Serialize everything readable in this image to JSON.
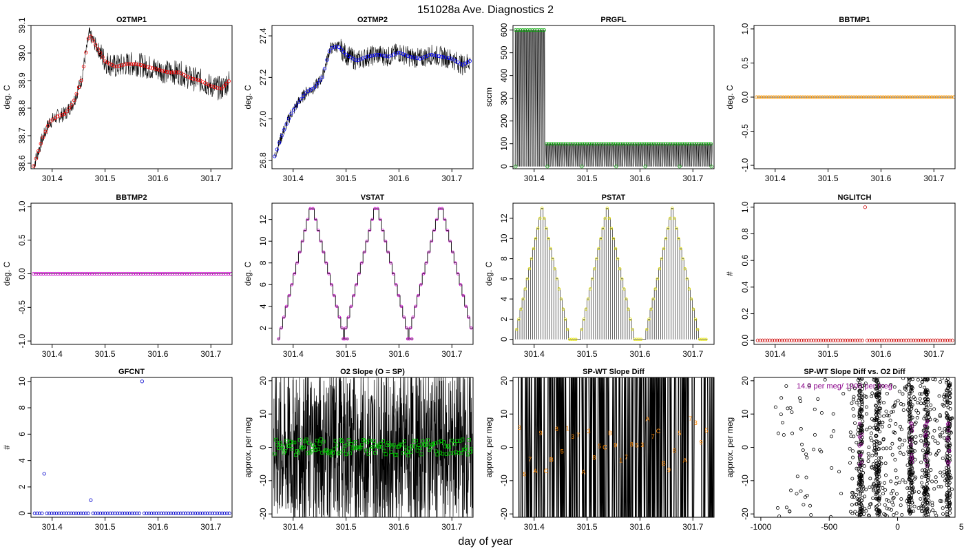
{
  "figure": {
    "title": "151028a   Ave. Diagnostics 2",
    "xlabel": "day of year"
  },
  "chart_data": [
    {
      "id": "o2tmp1",
      "type": "line",
      "title": "O2TMP1",
      "ylabel": "deg. C",
      "xlim": [
        301.36,
        301.74
      ],
      "ylim": [
        38.58,
        39.1
      ],
      "xticks": [
        "301.4",
        "301.5",
        "301.6",
        "301.7"
      ],
      "xtick_values": [
        301.4,
        301.5,
        301.6,
        301.7
      ],
      "yticks": [
        38.6,
        38.7,
        38.8,
        38.9,
        39.0,
        39.1
      ],
      "ytick_labels": [
        "38.6",
        "38.7",
        "38.8",
        "38.9",
        "39.0",
        "39.1"
      ],
      "marker_color": "#ff0000",
      "marker": "circle",
      "x": [
        301.365,
        301.38,
        301.395,
        301.41,
        301.425,
        301.44,
        301.455,
        301.47,
        301.485,
        301.5,
        301.52,
        301.54,
        301.56,
        301.58,
        301.6,
        301.62,
        301.64,
        301.66,
        301.68,
        301.7,
        301.72,
        301.735
      ],
      "y": [
        38.59,
        38.68,
        38.75,
        38.77,
        38.78,
        38.82,
        38.9,
        39.07,
        39.02,
        38.97,
        38.95,
        38.96,
        38.96,
        38.95,
        38.94,
        38.93,
        38.93,
        38.91,
        38.9,
        38.88,
        38.87,
        38.9
      ]
    },
    {
      "id": "o2tmp2",
      "type": "line",
      "title": "O2TMP2",
      "ylabel": "deg. C",
      "xlim": [
        301.36,
        301.74
      ],
      "ylim": [
        26.76,
        27.45
      ],
      "xticks": [
        "301.4",
        "301.5",
        "301.6",
        "301.7"
      ],
      "xtick_values": [
        301.4,
        301.5,
        301.6,
        301.7
      ],
      "yticks": [
        26.8,
        27.0,
        27.2,
        27.4
      ],
      "ytick_labels": [
        "26.8",
        "27.0",
        "27.2",
        "27.4"
      ],
      "marker_color": "#0000ff",
      "marker": "circle",
      "x": [
        301.365,
        301.38,
        301.395,
        301.41,
        301.425,
        301.44,
        301.455,
        301.47,
        301.485,
        301.5,
        301.52,
        301.54,
        301.56,
        301.58,
        301.6,
        301.62,
        301.64,
        301.66,
        301.68,
        301.7,
        301.72,
        301.735
      ],
      "y": [
        26.82,
        26.93,
        27.02,
        27.08,
        27.13,
        27.15,
        27.2,
        27.34,
        27.35,
        27.31,
        27.28,
        27.3,
        27.31,
        27.3,
        27.32,
        27.3,
        27.29,
        27.31,
        27.3,
        27.29,
        27.26,
        27.28
      ]
    },
    {
      "id": "prgfl",
      "type": "line",
      "title": "PRGFL",
      "ylabel": "sccm",
      "xlim": [
        301.36,
        301.74
      ],
      "ylim": [
        -10,
        620
      ],
      "xticks": [
        "301.4",
        "301.5",
        "301.6",
        "301.7"
      ],
      "xtick_values": [
        301.4,
        301.5,
        301.6,
        301.7
      ],
      "yticks": [
        0,
        100,
        200,
        300,
        400,
        500,
        600
      ],
      "ytick_labels": [
        "0",
        "100",
        "200",
        "300",
        "400",
        "500",
        "600"
      ],
      "marker_color": "#00aa00",
      "marker": "circle",
      "high_value": 600,
      "low_value": 100,
      "switch_x": 301.42,
      "dip_value": 0,
      "dip_x": [
        301.365,
        301.425,
        301.49,
        301.555,
        301.61,
        301.675,
        301.735
      ]
    },
    {
      "id": "bbtmp1",
      "type": "line",
      "title": "BBTMP1",
      "ylabel": "deg. C",
      "xlim": [
        301.36,
        301.74
      ],
      "ylim": [
        -1.05,
        1.05
      ],
      "xticks": [
        "301.4",
        "301.5",
        "301.6",
        "301.7"
      ],
      "xtick_values": [
        301.4,
        301.5,
        301.6,
        301.7
      ],
      "yticks": [
        -1.0,
        -0.5,
        0.0,
        0.5,
        1.0
      ],
      "ytick_labels": [
        "-1.0",
        "-0.5",
        "0.0",
        "0.5",
        "1.0"
      ],
      "marker_color": "#ff9900",
      "marker": "circle",
      "constant_value": 0.0
    },
    {
      "id": "bbtmp2",
      "type": "line",
      "title": "BBTMP2",
      "ylabel": "deg. C",
      "xlim": [
        301.36,
        301.74
      ],
      "ylim": [
        -1.05,
        1.05
      ],
      "xticks": [
        "301.4",
        "301.5",
        "301.6",
        "301.7"
      ],
      "xtick_values": [
        301.4,
        301.5,
        301.6,
        301.7
      ],
      "yticks": [
        -1.0,
        -0.5,
        0.0,
        0.5,
        1.0
      ],
      "ytick_labels": [
        "-1.0",
        "-0.5",
        "0.0",
        "0.5",
        "1.0"
      ],
      "marker_color": "#cc00cc",
      "marker": "circle",
      "constant_value": 0.0
    },
    {
      "id": "vstat",
      "type": "line",
      "title": "VSTAT",
      "ylabel": "deg. C",
      "xlim": [
        301.36,
        301.74
      ],
      "ylim": [
        0.5,
        13.5
      ],
      "xticks": [
        "301.4",
        "301.5",
        "301.6",
        "301.7"
      ],
      "xtick_values": [
        301.4,
        301.5,
        301.6,
        301.7
      ],
      "yticks": [
        2,
        4,
        6,
        8,
        10,
        12
      ],
      "ytick_labels": [
        "2",
        "4",
        "6",
        "8",
        "10",
        "12"
      ],
      "marker_color": "#cc00cc",
      "marker": "circle",
      "cycle_start": 301.37,
      "step_width": 0.005,
      "steps": [
        1,
        2,
        3,
        4,
        5,
        6,
        7,
        8,
        9,
        10,
        11,
        12,
        13,
        13,
        12,
        11,
        10,
        9,
        8,
        7,
        6,
        5,
        4,
        3,
        2,
        1,
        1
      ],
      "cycles": 3,
      "cycle_period": 0.122
    },
    {
      "id": "pstat",
      "type": "line",
      "title": "PSTAT",
      "ylabel": "deg. C",
      "xlim": [
        301.36,
        301.74
      ],
      "ylim": [
        -0.5,
        13.5
      ],
      "xticks": [
        "301.4",
        "301.5",
        "301.6",
        "301.7"
      ],
      "xtick_values": [
        301.4,
        301.5,
        301.6,
        301.7
      ],
      "yticks": [
        0,
        2,
        4,
        6,
        8,
        10,
        12
      ],
      "ytick_labels": [
        "0",
        "2",
        "4",
        "6",
        "8",
        "10",
        "12"
      ],
      "marker_color": "#e0e000",
      "marker": "circle",
      "cycle_start": 301.365,
      "step_width": 0.004,
      "steps": [
        1,
        2,
        3,
        4,
        5,
        6,
        7,
        8,
        9,
        10,
        11,
        12,
        13,
        12,
        11,
        10,
        9,
        8,
        7,
        6,
        5,
        4,
        3,
        2,
        1,
        0,
        0,
        0,
        0
      ],
      "cycles": 3,
      "cycle_period": 0.123
    },
    {
      "id": "nglitch",
      "type": "scatter",
      "title": "NGLITCH",
      "ylabel": "#",
      "xlim": [
        301.36,
        301.74
      ],
      "ylim": [
        -0.03,
        1.03
      ],
      "xticks": [
        "301.4",
        "301.5",
        "301.6",
        "301.7"
      ],
      "xtick_values": [
        301.4,
        301.5,
        301.6,
        301.7
      ],
      "yticks": [
        0.0,
        0.2,
        0.4,
        0.6,
        0.8,
        1.0
      ],
      "ytick_labels": [
        "0.0",
        "0.2",
        "0.4",
        "0.6",
        "0.8",
        "1.0"
      ],
      "marker_color": "#cc0000",
      "marker": "circle",
      "baseline_value": 0,
      "spike_x": [
        301.57
      ],
      "spike_y": [
        1
      ]
    },
    {
      "id": "gfcnt",
      "type": "scatter",
      "title": "GFCNT",
      "ylabel": "#",
      "xlim": [
        301.36,
        301.74
      ],
      "ylim": [
        -0.3,
        10.3
      ],
      "xticks": [
        "301.4",
        "301.5",
        "301.6",
        "301.7"
      ],
      "xtick_values": [
        301.4,
        301.5,
        301.6,
        301.7
      ],
      "yticks": [
        0,
        2,
        4,
        6,
        8,
        10
      ],
      "ytick_labels": [
        "0",
        "2",
        "4",
        "6",
        "8",
        "10"
      ],
      "marker_color": "#0000cc",
      "marker": "circle",
      "baseline_value": 0,
      "spike_x": [
        301.385,
        301.473,
        301.57
      ],
      "spike_y": [
        3,
        1,
        10
      ]
    },
    {
      "id": "o2slope",
      "type": "line",
      "title": "O2 Slope (O = SP)",
      "ylabel": "approx. per meg",
      "xlim": [
        301.36,
        301.74
      ],
      "ylim": [
        -21,
        21
      ],
      "xticks": [
        "301.4",
        "301.5",
        "301.6",
        "301.7"
      ],
      "xtick_values": [
        301.4,
        301.5,
        301.6,
        301.7
      ],
      "yticks": [
        -20,
        -10,
        0,
        10,
        20
      ],
      "ytick_labels": [
        "-20",
        "-10",
        "0",
        "10",
        "20"
      ],
      "marker_color": "#00cc00",
      "marker": "square",
      "band_center": 0,
      "band_spread": 2.5
    },
    {
      "id": "spwt",
      "type": "line",
      "title": "SP-WT Slope Diff",
      "ylabel": "approx. per meg",
      "xlim": [
        301.36,
        301.74
      ],
      "ylim": [
        -21,
        21
      ],
      "xticks": [
        "301.4",
        "301.5",
        "301.6",
        "301.7"
      ],
      "xtick_values": [
        301.4,
        301.5,
        301.6,
        301.7
      ],
      "yticks": [
        -20,
        -10,
        0,
        10,
        20
      ],
      "ytick_labels": [
        "-20",
        "-10",
        "0",
        "10",
        "20"
      ],
      "marker_color": "#ff8800",
      "marker": "label",
      "labels": [
        "3",
        "5",
        "7",
        "A",
        "9",
        "C",
        "B",
        "8",
        "5",
        "1",
        "3",
        "7",
        "A",
        "3",
        "8",
        "5",
        "C",
        "B",
        "9",
        "1",
        "7",
        "8",
        "5",
        "3",
        "A",
        "7",
        "C",
        "B",
        "9",
        "8",
        "5",
        "A",
        "7",
        "3",
        "9",
        "5"
      ]
    },
    {
      "id": "spwt_vs_o2",
      "type": "scatter",
      "title": "SP-WT Slope Diff vs. O2 Diff",
      "ylabel": "approx. per meg",
      "xlim": [
        -1050,
        420
      ],
      "ylim": [
        -21,
        21
      ],
      "xticks": [
        "-1000",
        "-500",
        "0",
        "500"
      ],
      "xtick_values": [
        -1000,
        -500,
        0,
        500
      ],
      "yticks": [
        -20,
        -10,
        0,
        10,
        20
      ],
      "ytick_labels": [
        "-20",
        "-10",
        "0",
        "10",
        "20"
      ],
      "marker_color": "#000000",
      "marker": "circle",
      "highlight_color": "#8a008a",
      "annotation": "14.9 per meg/ 1000 per meg",
      "column_x": [
        -270,
        -145,
        95,
        210,
        370
      ]
    }
  ]
}
